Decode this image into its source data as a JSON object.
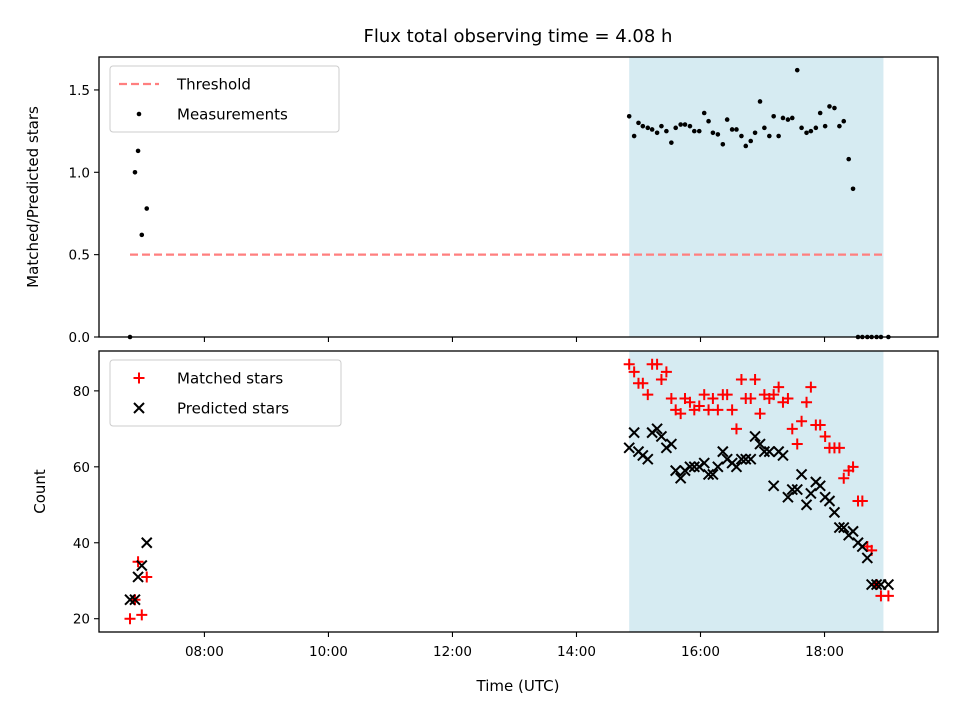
{
  "chart_data": {
    "type": "scatter",
    "title": "Flux total observing time = 4.08 h",
    "xlabel": "Time (UTC)",
    "xlim": [
      6.3,
      19.83
    ],
    "xticks": [
      "08:00",
      "10:00",
      "12:00",
      "14:00",
      "16:00",
      "18:00"
    ],
    "xtick_values": [
      8,
      10,
      12,
      14,
      16,
      18
    ],
    "highlight_span": {
      "x": [
        14.85,
        18.95
      ],
      "color": "#add8e6"
    },
    "panels": [
      {
        "ylabel": "Matched/Predicted stars",
        "ylim": [
          0,
          1.7
        ],
        "yticks": [
          "0.0",
          "0.5",
          "1.0",
          "1.5"
        ],
        "ytick_values": [
          0,
          0.5,
          1.0,
          1.5
        ],
        "legend": {
          "placement": "upper left"
        },
        "series": [
          {
            "name": "Threshold",
            "kind": "line",
            "style": "dashed",
            "color": "#ff7f7f",
            "x": [
              6.8,
              18.95
            ],
            "y": [
              0.5,
              0.5
            ]
          },
          {
            "name": "Measurements",
            "kind": "dots",
            "color": "#000000",
            "x": [
              6.8,
              6.88,
              6.93,
              6.99,
              7.07,
              14.85,
              14.93,
              15.0,
              15.07,
              15.15,
              15.22,
              15.3,
              15.37,
              15.45,
              15.53,
              15.6,
              15.68,
              15.75,
              15.83,
              15.9,
              15.98,
              16.06,
              16.13,
              16.2,
              16.28,
              16.36,
              16.43,
              16.51,
              16.58,
              16.66,
              16.73,
              16.81,
              16.88,
              16.96,
              17.03,
              17.11,
              17.18,
              17.26,
              17.33,
              17.41,
              17.48,
              17.56,
              17.63,
              17.71,
              17.78,
              17.86,
              17.93,
              18.01,
              18.08,
              18.16,
              18.24,
              18.31,
              18.39,
              18.46,
              18.54,
              18.61,
              18.69,
              18.76,
              18.84,
              18.91,
              19.03
            ],
            "y": [
              0.0,
              1.0,
              1.13,
              0.62,
              0.78,
              1.34,
              1.22,
              1.3,
              1.28,
              1.27,
              1.26,
              1.24,
              1.28,
              1.25,
              1.18,
              1.27,
              1.29,
              1.29,
              1.28,
              1.25,
              1.25,
              1.36,
              1.31,
              1.24,
              1.23,
              1.17,
              1.32,
              1.26,
              1.26,
              1.22,
              1.16,
              1.19,
              1.24,
              1.43,
              1.27,
              1.22,
              1.34,
              1.22,
              1.33,
              1.32,
              1.33,
              1.62,
              1.27,
              1.24,
              1.25,
              1.27,
              1.36,
              1.28,
              1.4,
              1.39,
              1.28,
              1.31,
              1.08,
              0.9,
              0.0,
              0.0,
              0.0,
              0.0,
              0.0,
              0.0,
              0.0
            ]
          }
        ]
      },
      {
        "ylabel": "Count",
        "ylim": [
          16.5,
          90.5
        ],
        "yticks": [
          "20",
          "40",
          "60",
          "80"
        ],
        "ytick_values": [
          20,
          40,
          60,
          80
        ],
        "legend": {
          "placement": "upper left"
        },
        "series": [
          {
            "name": "Matched stars",
            "kind": "plus",
            "color": "#ff0000",
            "x": [
              6.8,
              6.88,
              6.93,
              6.99,
              7.07,
              14.85,
              14.93,
              15.0,
              15.07,
              15.15,
              15.22,
              15.3,
              15.37,
              15.45,
              15.53,
              15.6,
              15.68,
              15.75,
              15.83,
              15.9,
              15.98,
              16.06,
              16.13,
              16.2,
              16.28,
              16.36,
              16.43,
              16.51,
              16.58,
              16.66,
              16.73,
              16.81,
              16.88,
              16.96,
              17.03,
              17.11,
              17.18,
              17.26,
              17.33,
              17.41,
              17.48,
              17.56,
              17.63,
              17.71,
              17.78,
              17.86,
              17.93,
              18.01,
              18.08,
              18.16,
              18.24,
              18.31,
              18.39,
              18.46,
              18.54,
              18.61,
              18.69,
              18.76,
              18.84,
              18.91,
              19.03
            ],
            "y": [
              20,
              25,
              35,
              21,
              31,
              87,
              85,
              82,
              82,
              79,
              87,
              87,
              83,
              85,
              78,
              75,
              74,
              78,
              77,
              75,
              76,
              79,
              75,
              78,
              75,
              79,
              79,
              75,
              70,
              83,
              78,
              78,
              83,
              74,
              79,
              78,
              79,
              81,
              77,
              78,
              70,
              66,
              72,
              77,
              81,
              71,
              71,
              68,
              65,
              65,
              65,
              57,
              59,
              60,
              51,
              51,
              39,
              38,
              29,
              26,
              26
            ]
          },
          {
            "name": "Predicted stars",
            "kind": "cross",
            "color": "#000000",
            "x": [
              6.8,
              6.88,
              6.93,
              6.99,
              7.07,
              14.85,
              14.93,
              15.0,
              15.07,
              15.15,
              15.22,
              15.3,
              15.37,
              15.45,
              15.53,
              15.6,
              15.68,
              15.75,
              15.83,
              15.9,
              15.98,
              16.06,
              16.13,
              16.2,
              16.28,
              16.36,
              16.43,
              16.51,
              16.58,
              16.66,
              16.73,
              16.81,
              16.88,
              16.96,
              17.03,
              17.11,
              17.18,
              17.26,
              17.33,
              17.41,
              17.48,
              17.56,
              17.63,
              17.71,
              17.78,
              17.86,
              17.93,
              18.01,
              18.08,
              18.16,
              18.24,
              18.31,
              18.39,
              18.46,
              18.54,
              18.61,
              18.69,
              18.76,
              18.84,
              18.91,
              19.03
            ],
            "y": [
              25,
              25,
              31,
              34,
              40,
              65,
              69,
              64,
              63,
              62,
              69,
              70,
              68,
              65,
              66,
              59,
              57,
              59,
              60,
              60,
              60,
              61,
              58,
              58,
              60,
              64,
              62,
              61,
              60,
              62,
              62,
              62,
              68,
              66,
              64,
              64,
              55,
              64,
              63,
              52,
              54,
              54,
              58,
              50,
              53,
              56,
              55,
              52,
              51,
              48,
              44,
              44,
              42,
              43,
              40,
              39,
              36,
              29,
              29,
              29,
              29
            ]
          }
        ]
      }
    ]
  }
}
